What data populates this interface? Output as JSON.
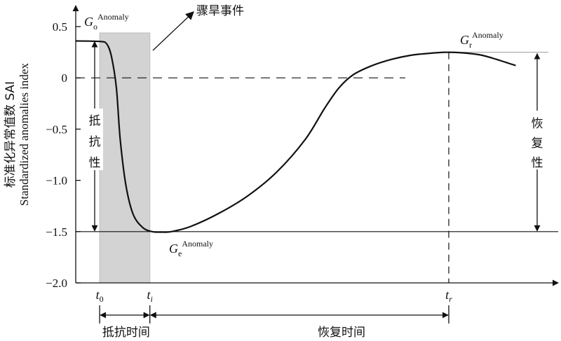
{
  "chart_data": {
    "type": "line",
    "ylabel_cn": "标准化异常值数 SAI",
    "ylabel_en": "Standardized anomalies index",
    "ylim": [
      -2.0,
      0.6
    ],
    "xlim": [
      0,
      100
    ],
    "yticks": [
      {
        "value": 0.5,
        "label": "0.5"
      },
      {
        "value": 0,
        "label": "0"
      },
      {
        "value": -0.5,
        "label": "-0.5"
      },
      {
        "value": -1.0,
        "label": "-1.0"
      },
      {
        "value": -1.5,
        "label": "-1.5"
      },
      {
        "value": -2.0,
        "label": "-2.0"
      }
    ],
    "series": [
      {
        "x": [
          0,
          5,
          6.5,
          7.5,
          8.5,
          9.3,
          10.5,
          12,
          14,
          16,
          18,
          20,
          24,
          30,
          36,
          42,
          48,
          52,
          55,
          58,
          62,
          66,
          70,
          74,
          78,
          82,
          85,
          88,
          90,
          92
        ],
        "y": [
          0.36,
          0.355,
          0.33,
          0.2,
          -0.1,
          -0.6,
          -1.05,
          -1.33,
          -1.46,
          -1.5,
          -1.505,
          -1.5,
          -1.45,
          -1.32,
          -1.15,
          -0.92,
          -0.6,
          -0.3,
          -0.1,
          0.03,
          0.12,
          0.18,
          0.22,
          0.24,
          0.25,
          0.24,
          0.22,
          0.18,
          0.15,
          0.12
        ]
      }
    ],
    "markers": {
      "t0": {
        "x": 5,
        "sub": "0"
      },
      "ti": {
        "x": 15.5,
        "sub": "i"
      },
      "tr": {
        "x": 78,
        "sub": "r"
      }
    },
    "shaded_region": {
      "x0": 5,
      "x1": 15.5
    },
    "reference_lines": {
      "zero": 0,
      "min": -1.5,
      "max": 0.25,
      "start": 0.36
    },
    "annotations": {
      "event": "骤旱事件",
      "resistance": "抵抗性",
      "recovery": "恢复性",
      "resistance_time": "抵抗时间",
      "recovery_time": "恢复时间",
      "g_o": {
        "base": "G",
        "sub": "o",
        "sup": "Anomaly"
      },
      "g_e": {
        "base": "G",
        "sub": "e",
        "sup": "Anomaly"
      },
      "g_r": {
        "base": "G",
        "sub": "r",
        "sup": "Anomaly"
      },
      "t_base": "t"
    }
  }
}
